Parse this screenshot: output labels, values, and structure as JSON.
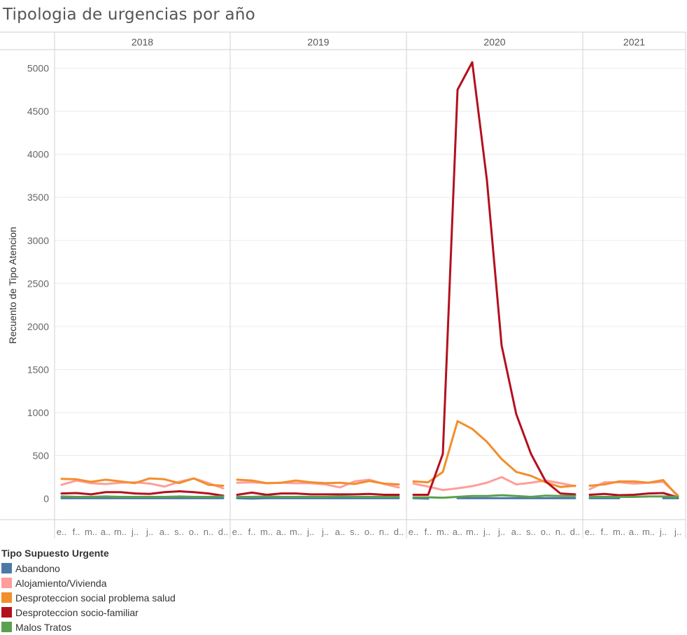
{
  "title": "Tipologia de urgencias por año",
  "chart_data": {
    "type": "line",
    "title": "Tipologia de urgencias por año",
    "ylabel": "Recuento de Tipo Atencion",
    "xlabel": "",
    "ylim": [
      0,
      5200
    ],
    "yticks": [
      0,
      500,
      1000,
      1500,
      2000,
      2500,
      3000,
      3500,
      4000,
      4500,
      5000
    ],
    "grid": true,
    "legend_position": "bottom-left",
    "panels": [
      {
        "year": "2018",
        "month_labels": [
          "e..",
          "f..",
          "m..",
          "a..",
          "m..",
          "j..",
          "j..",
          "a..",
          "s..",
          "o..",
          "n..",
          "d.."
        ]
      },
      {
        "year": "2019",
        "month_labels": [
          "e..",
          "f..",
          "m..",
          "a..",
          "m..",
          "j..",
          "j..",
          "a..",
          "s..",
          "o..",
          "n..",
          "d.."
        ]
      },
      {
        "year": "2020",
        "month_labels": [
          "e..",
          "f..",
          "m..",
          "a..",
          "m..",
          "j..",
          "j..",
          "a..",
          "s..",
          "o..",
          "n..",
          "d.."
        ]
      },
      {
        "year": "2021",
        "month_labels": [
          "e..",
          "f..",
          "m..",
          "a..",
          "m..",
          "j..",
          "j.."
        ]
      }
    ],
    "series": [
      {
        "name": "Abandono",
        "color": "#4e79a7",
        "values": [
          [
            5,
            5,
            5,
            5,
            5,
            5,
            5,
            5,
            5,
            5,
            5,
            5
          ],
          [
            5,
            0,
            5,
            5,
            5,
            5,
            5,
            5,
            5,
            5,
            5,
            5
          ],
          [
            5,
            0,
            null,
            5,
            5,
            5,
            5,
            5,
            5,
            5,
            5,
            5
          ],
          [
            5,
            5,
            5,
            null,
            null,
            5,
            5
          ]
        ]
      },
      {
        "name": "Alojamiento/Vivienda",
        "color": "#ff9d9a",
        "values": [
          [
            160,
            210,
            180,
            170,
            185,
            190,
            175,
            140,
            195,
            235,
            180,
            120
          ],
          [
            185,
            190,
            180,
            185,
            180,
            180,
            165,
            130,
            200,
            220,
            170,
            130
          ],
          [
            175,
            140,
            100,
            120,
            145,
            185,
            250,
            165,
            185,
            210,
            180,
            145
          ],
          [
            110,
            190,
            190,
            175,
            185,
            195,
            40
          ]
        ]
      },
      {
        "name": "Desproteccion social problema salud",
        "color": "#f28e2b",
        "values": [
          [
            230,
            225,
            195,
            220,
            200,
            180,
            235,
            225,
            180,
            235,
            160,
            150
          ],
          [
            220,
            210,
            180,
            185,
            210,
            190,
            180,
            185,
            170,
            205,
            175,
            165
          ],
          [
            200,
            190,
            310,
            900,
            810,
            660,
            460,
            310,
            265,
            190,
            135,
            150
          ],
          [
            150,
            165,
            200,
            200,
            185,
            215,
            25
          ]
        ]
      },
      {
        "name": "Desproteccion socio-familiar",
        "color": "#b3101e",
        "values": [
          [
            60,
            65,
            50,
            75,
            75,
            60,
            55,
            75,
            85,
            75,
            60,
            35
          ],
          [
            45,
            70,
            45,
            60,
            60,
            50,
            50,
            50,
            50,
            55,
            45,
            45
          ],
          [
            45,
            45,
            520,
            4750,
            5070,
            3700,
            1780,
            980,
            520,
            200,
            60,
            50
          ],
          [
            45,
            55,
            40,
            45,
            60,
            65,
            15
          ]
        ]
      },
      {
        "name": "Malos Tratos",
        "color": "#59a14f",
        "values": [
          [
            25,
            20,
            20,
            25,
            20,
            20,
            20,
            20,
            25,
            20,
            20,
            25
          ],
          [
            20,
            20,
            25,
            20,
            20,
            20,
            20,
            25,
            20,
            20,
            20,
            20
          ],
          [
            15,
            15,
            10,
            20,
            30,
            30,
            40,
            30,
            20,
            35,
            30,
            30
          ],
          [
            20,
            20,
            20,
            20,
            25,
            25,
            20
          ]
        ]
      }
    ]
  },
  "legend": {
    "title": "Tipo Supuesto Urgente",
    "items": [
      {
        "label": "Abandono",
        "color": "#4e79a7"
      },
      {
        "label": "Alojamiento/Vivienda",
        "color": "#ff9d9a"
      },
      {
        "label": "Desproteccion social problema salud",
        "color": "#f28e2b"
      },
      {
        "label": "Desproteccion socio-familiar",
        "color": "#b3101e"
      },
      {
        "label": "Malos Tratos",
        "color": "#59a14f"
      }
    ]
  }
}
